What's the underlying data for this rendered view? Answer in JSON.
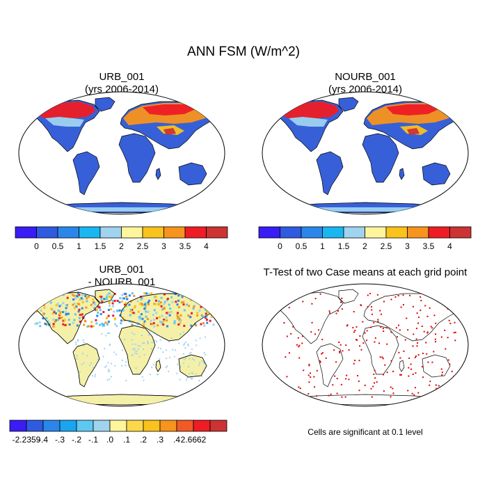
{
  "figure": {
    "title": "ANN FSM (W/m^2)"
  },
  "panels": [
    {
      "id": "urb",
      "title_line1": "URB_001",
      "title_line2": "(yrs 2006-2014)",
      "type": "field"
    },
    {
      "id": "nourb",
      "title_line1": "NOURB_001",
      "title_line2": "(yrs 2006-2014)",
      "type": "field"
    },
    {
      "id": "diff",
      "title_line1": "URB_001",
      "title_line2": "- NOURB_001",
      "type": "difference"
    },
    {
      "id": "ttest",
      "title_line1": "T-Test of two Case means at each grid point",
      "title_line2": "",
      "type": "significance"
    }
  ],
  "colorbars": {
    "field": {
      "colors": [
        "#3a1cf4",
        "#2f5be0",
        "#2b86ea",
        "#19b6ef",
        "#9fd3ee",
        "#fff59d",
        "#f9c21c",
        "#f7941d",
        "#ee1c24",
        "#cc3333"
      ],
      "labels": [
        "0",
        "0.5",
        "1",
        "1.5",
        "2",
        "2.5",
        "3",
        "3.5",
        "4"
      ]
    },
    "difference": {
      "colors": [
        "#3a1cf4",
        "#2f5be0",
        "#2b86ea",
        "#19a5f0",
        "#5ec8f0",
        "#9fd3ee",
        "#fff59d",
        "#fbd84a",
        "#f9c21c",
        "#f7941d",
        "#f15a24",
        "#ee1c24",
        "#cc3333"
      ],
      "labels": [
        "-2.2359",
        "-.4",
        "-.3",
        "-.2",
        "-.1",
        ".0",
        ".1",
        ".2",
        ".3",
        ".4",
        "2.6662"
      ]
    }
  },
  "significance_note": "Cells are significant at 0.1 level",
  "map_colors": {
    "ocean": "#ffffff",
    "land_low": "#3760d8",
    "land_high": "#e9321f",
    "diff_base": "#f4f0a8",
    "sig": "#dd0000"
  }
}
